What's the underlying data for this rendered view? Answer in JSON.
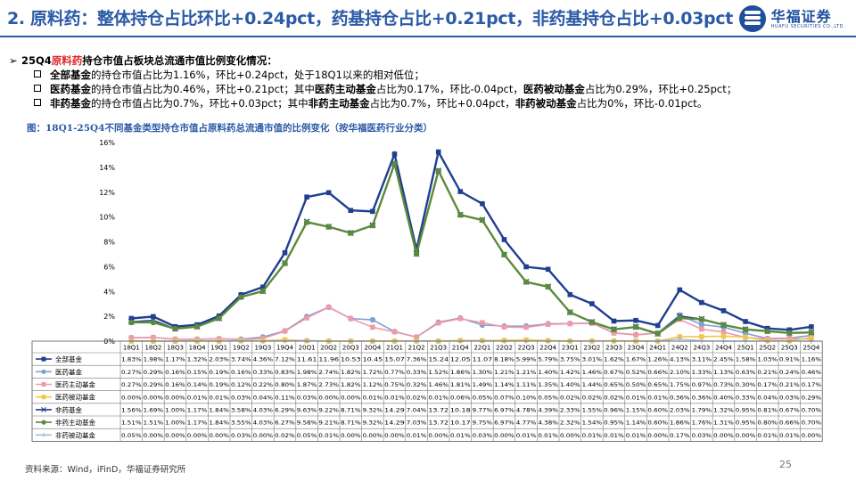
{
  "title": "2. 原料药：整体持仓占比环比+0.24pct，药基持仓占比+0.21pct，非药基持仓占比+0.03pct",
  "logo": {
    "cn": "华福证券",
    "en": "HUAFU SECURITIES CO.,LTD."
  },
  "bullets": {
    "main_prefix": "25Q4",
    "main_highlight": "原料药",
    "main_suffix": "持仓市值占板块总流通市值比例变化情况：",
    "line1": {
      "b1": "全部基金",
      "t1": "的持仓市值占比为1.16%，环比+0.24pct，处于18Q1以来的相对低位；"
    },
    "line2": {
      "b1": "医药基金",
      "t1": "的持仓市值占比为0.46%，环比+0.21pct；其中",
      "b2": "医药主动基金",
      "t2": "占比为0.17%，环比-0.04pct，",
      "b3": "医药被动基金",
      "t3": "占比为0.29%，环比+0.25pct；"
    },
    "line3": {
      "b1": "非药基金",
      "t1": "的持仓市值占比为0.7%，环比+0.03pct；其中",
      "b2": "非药主动基金",
      "t2": "占比为0.7%，环比+0.04pct，",
      "b3": "非药被动基金",
      "t3": "占比为0%，环比-0.01pct。"
    }
  },
  "caption": "图：18Q1-25Q4不同基金类型持仓市值占原料药总流通市值的比例变化（按华福医药行业分类）",
  "source": "资料来源：Wind，iFinD，华福证券研究所",
  "page_number": "25",
  "chart_data": {
    "type": "line",
    "categories": [
      "18Q1",
      "18Q2",
      "18Q3",
      "18Q4",
      "19Q1",
      "19Q2",
      "19Q3",
      "19Q4",
      "20Q1",
      "20Q2",
      "20Q3",
      "20Q4",
      "21Q1",
      "21Q2",
      "21Q3",
      "21Q4",
      "22Q1",
      "22Q2",
      "22Q3",
      "22Q4",
      "23Q1",
      "23Q2",
      "23Q3",
      "23Q4",
      "24Q1",
      "24Q2",
      "24Q3",
      "24Q4",
      "25Q1",
      "25Q2",
      "25Q3",
      "25Q4"
    ],
    "ylim": [
      0,
      16
    ],
    "yticks": [
      "0%",
      "2%",
      "4%",
      "6%",
      "8%",
      "10%",
      "12%",
      "14%",
      "16%"
    ],
    "series": [
      {
        "name": "全部基金",
        "color": "#1f3f8f",
        "marker": "square",
        "lw": 2.4,
        "values": [
          1.83,
          1.98,
          1.17,
          1.32,
          2.03,
          3.74,
          4.36,
          7.12,
          11.61,
          11.96,
          10.53,
          10.45,
          15.07,
          7.36,
          15.24,
          12.05,
          11.07,
          8.18,
          5.99,
          5.79,
          3.75,
          3.01,
          1.62,
          1.67,
          1.26,
          4.13,
          3.11,
          2.45,
          1.58,
          1.03,
          0.91,
          1.16
        ],
        "labels": [
          "1.83%",
          "1.98%",
          "1.17%",
          "1.32%",
          "2.03%",
          "3.74%",
          "4.36%",
          "7.12%",
          "11.61",
          "11.96",
          "10.53",
          "10.45",
          "15.07",
          "7.36%",
          "15.24",
          "12.05",
          "11.07",
          "8.18%",
          "5.99%",
          "5.79%",
          "3.75%",
          "3.01%",
          "1.62%",
          "1.67%",
          "1.26%",
          "4.13%",
          "3.11%",
          "2.45%",
          "1.58%",
          "1.03%",
          "0.91%",
          "1.16%"
        ]
      },
      {
        "name": "医药基金",
        "color": "#7f9fd6",
        "marker": "circle",
        "lw": 1.6,
        "values": [
          0.27,
          0.29,
          0.16,
          0.15,
          0.19,
          0.16,
          0.33,
          0.83,
          1.98,
          2.74,
          1.82,
          1.72,
          0.77,
          0.33,
          1.52,
          1.86,
          1.3,
          1.21,
          1.21,
          1.4,
          1.42,
          1.46,
          0.67,
          0.52,
          0.66,
          2.1,
          1.33,
          1.13,
          0.63,
          0.21,
          0.24,
          0.46
        ],
        "labels": [
          "0.27%",
          "0.29%",
          "0.16%",
          "0.15%",
          "0.19%",
          "0.16%",
          "0.33%",
          "0.83%",
          "1.98%",
          "2.74%",
          "1.82%",
          "1.72%",
          "0.77%",
          "0.33%",
          "1.52%",
          "1.86%",
          "1.30%",
          "1.21%",
          "1.21%",
          "1.40%",
          "1.42%",
          "1.46%",
          "0.67%",
          "0.52%",
          "0.66%",
          "2.10%",
          "1.33%",
          "1.13%",
          "0.63%",
          "0.21%",
          "0.24%",
          "0.46%"
        ]
      },
      {
        "name": "医药主动基金",
        "color": "#f09aa8",
        "marker": "square",
        "lw": 1.6,
        "values": [
          0.27,
          0.29,
          0.16,
          0.14,
          0.19,
          0.12,
          0.22,
          0.8,
          1.87,
          2.73,
          1.82,
          1.12,
          0.75,
          0.32,
          1.46,
          1.81,
          1.49,
          1.14,
          1.11,
          1.35,
          1.4,
          1.44,
          0.65,
          0.5,
          0.65,
          1.75,
          0.97,
          0.73,
          0.3,
          0.17,
          0.21,
          0.17
        ],
        "labels": [
          "0.27%",
          "0.29%",
          "0.16%",
          "0.14%",
          "0.19%",
          "0.12%",
          "0.22%",
          "0.80%",
          "1.87%",
          "2.73%",
          "1.82%",
          "1.12%",
          "0.75%",
          "0.32%",
          "1.46%",
          "1.81%",
          "1.49%",
          "1.14%",
          "1.11%",
          "1.35%",
          "1.40%",
          "1.44%",
          "0.65%",
          "0.50%",
          "0.65%",
          "1.75%",
          "0.97%",
          "0.73%",
          "0.30%",
          "0.17%",
          "0.21%",
          "0.17%"
        ]
      },
      {
        "name": "医药被动基金",
        "color": "#f2c84b",
        "marker": "square",
        "lw": 1.6,
        "values": [
          0.0,
          0.0,
          0.0,
          0.01,
          0.01,
          0.03,
          0.04,
          0.11,
          0.03,
          0.0,
          0.0,
          0.01,
          0.01,
          0.02,
          0.01,
          0.06,
          0.05,
          0.07,
          0.1,
          0.05,
          0.02,
          0.02,
          0.02,
          0.01,
          0.01,
          0.36,
          0.36,
          0.4,
          0.33,
          0.04,
          0.03,
          0.29
        ],
        "labels": [
          "0.00%",
          "0.00%",
          "0.00%",
          "0.01%",
          "0.01%",
          "0.03%",
          "0.04%",
          "0.11%",
          "0.03%",
          "0.00%",
          "0.00%",
          "0.01%",
          "0.01%",
          "0.02%",
          "0.01%",
          "0.06%",
          "0.05%",
          "0.07%",
          "0.10%",
          "0.05%",
          "0.02%",
          "0.02%",
          "0.02%",
          "0.01%",
          "0.01%",
          "0.36%",
          "0.36%",
          "0.40%",
          "0.33%",
          "0.04%",
          "0.03%",
          "0.29%"
        ]
      },
      {
        "name": "非药基金",
        "color": "#1f3f8f",
        "marker": "x",
        "lw": 1.4,
        "values": [
          1.56,
          1.69,
          1.0,
          1.17,
          1.84,
          3.58,
          4.03,
          6.29,
          9.63,
          9.22,
          8.71,
          9.32,
          14.29,
          7.04,
          13.72,
          10.18,
          9.77,
          6.97,
          4.78,
          4.39,
          2.33,
          1.55,
          0.96,
          1.15,
          0.6,
          2.03,
          1.79,
          1.32,
          0.95,
          0.81,
          0.67,
          0.7
        ],
        "labels": [
          "1.56%",
          "1.69%",
          "1.00%",
          "1.17%",
          "1.84%",
          "3.58%",
          "4.03%",
          "6.29%",
          "9.63%",
          "9.22%",
          "8.71%",
          "9.32%",
          "14.29",
          "7.04%",
          "13.72",
          "10.18",
          "9.77%",
          "6.97%",
          "4.78%",
          "4.39%",
          "2.33%",
          "1.55%",
          "0.96%",
          "1.15%",
          "0.60%",
          "2.03%",
          "1.79%",
          "1.32%",
          "0.95%",
          "0.81%",
          "0.67%",
          "0.70%"
        ]
      },
      {
        "name": "非药主动基金",
        "color": "#5b8a3a",
        "marker": "circle",
        "lw": 2.4,
        "values": [
          1.51,
          1.51,
          1.0,
          1.17,
          1.84,
          3.55,
          4.03,
          6.27,
          9.58,
          9.21,
          8.71,
          9.32,
          14.29,
          7.03,
          13.72,
          10.17,
          9.75,
          6.97,
          4.77,
          4.38,
          2.32,
          1.54,
          0.95,
          1.14,
          0.6,
          1.86,
          1.76,
          1.31,
          0.95,
          0.8,
          0.66,
          0.7
        ],
        "labels": [
          "1.51%",
          "1.51%",
          "1.00%",
          "1.17%",
          "1.84%",
          "3.55%",
          "4.03%",
          "6.27%",
          "9.58%",
          "9.21%",
          "8.71%",
          "9.32%",
          "14.29",
          "7.03%",
          "13.72",
          "10.17",
          "9.75%",
          "6.97%",
          "4.77%",
          "4.38%",
          "2.32%",
          "1.54%",
          "0.95%",
          "1.14%",
          "0.60%",
          "1.86%",
          "1.76%",
          "1.31%",
          "0.95%",
          "0.80%",
          "0.66%",
          "0.70%"
        ]
      },
      {
        "name": "非药被动基金",
        "color": "#a7b9d9",
        "marker": "plus",
        "lw": 1.2,
        "values": [
          0.05,
          0.0,
          0.0,
          0.0,
          0.0,
          0.03,
          0.0,
          0.02,
          0.05,
          0.01,
          0.0,
          0.0,
          0.0,
          0.01,
          0.0,
          0.01,
          0.03,
          0.0,
          0.01,
          0.01,
          0.0,
          0.01,
          0.01,
          0.01,
          0.0,
          0.17,
          0.03,
          0.0,
          0.0,
          0.01,
          0.01,
          0.0
        ],
        "labels": [
          "0.05%",
          "0.00%",
          "0.00%",
          "0.00%",
          "0.00%",
          "0.03%",
          "0.00%",
          "0.02%",
          "0.05%",
          "0.01%",
          "0.00%",
          "0.00%",
          "0.00%",
          "0.01%",
          "0.00%",
          "0.01%",
          "0.03%",
          "0.00%",
          "0.01%",
          "0.01%",
          "0.00%",
          "0.01%",
          "0.01%",
          "0.01%",
          "0.00%",
          "0.17%",
          "0.03%",
          "0.00%",
          "0.00%",
          "0.01%",
          "0.01%",
          "0.00%"
        ]
      }
    ]
  }
}
